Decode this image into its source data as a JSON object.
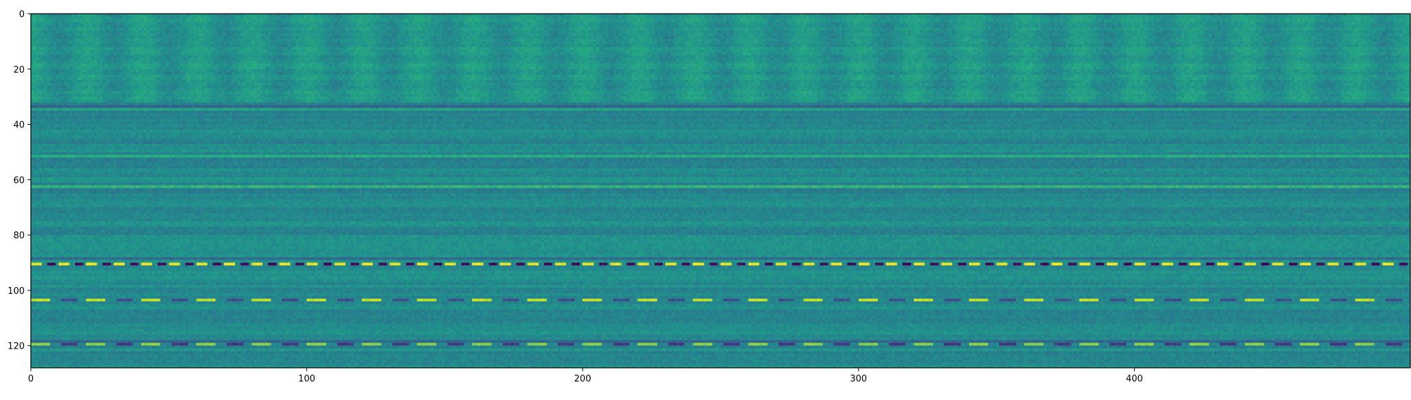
{
  "chart_data": {
    "type": "heatmap",
    "title": "",
    "xlabel": "",
    "ylabel": "",
    "colormap": "viridis",
    "n_cols": 500,
    "n_rows": 128,
    "xlim": [
      0,
      500
    ],
    "ylim": [
      128,
      0
    ],
    "x_ticks": [
      0,
      100,
      200,
      300,
      400
    ],
    "x_tick_labels": [
      "0",
      "100",
      "200",
      "300",
      "400"
    ],
    "y_ticks": [
      0,
      20,
      40,
      60,
      80,
      100,
      120
    ],
    "y_tick_labels": [
      "0",
      "20",
      "40",
      "60",
      "80",
      "100",
      "120"
    ],
    "background_level": 0.47,
    "top_band": {
      "rows": [
        0,
        32
      ],
      "level": 0.52,
      "column_period": 20
    },
    "bright_rows": [
      {
        "row": 34,
        "level": 0.58
      },
      {
        "row": 51,
        "level": 0.62
      },
      {
        "row": 62,
        "level": 0.66
      }
    ],
    "striped_rows": [
      {
        "row": 90,
        "low": 0.02,
        "high": 0.98,
        "period": 10
      },
      {
        "row": 103,
        "low": 0.25,
        "high": 0.9,
        "period": 20
      },
      {
        "row": 119,
        "low": 0.18,
        "high": 0.82,
        "period": 20
      }
    ],
    "dark_rows": [
      {
        "row": 33,
        "level": 0.32
      },
      {
        "row": 88,
        "level": 0.35
      },
      {
        "row": 118,
        "level": 0.33
      }
    ],
    "grid": false,
    "legend": "none"
  }
}
